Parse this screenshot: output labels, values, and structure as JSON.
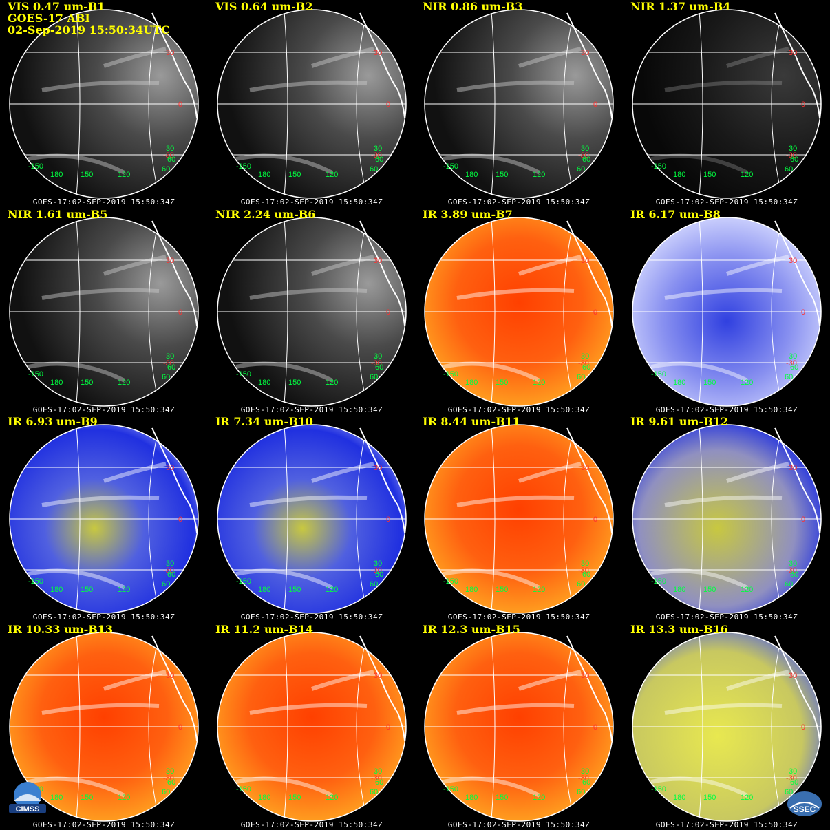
{
  "header": {
    "satellite": "GOES-17 ABI",
    "datetime": "02-Sep-2019 15:50:34UTC"
  },
  "footer_text": "GOES-17:02-SEP-2019 15:50:34Z",
  "lat_labels": [
    "30",
    "0",
    "-30"
  ],
  "lon_labels": [
    "-150",
    "180",
    "150",
    "120",
    "60"
  ],
  "lon_labels_extra": [
    "30",
    "60"
  ],
  "logos": {
    "left": "CIMSS",
    "right": "SSEC"
  },
  "panels": [
    {
      "label": "VIS 0.47 um-B1",
      "palette": "vis"
    },
    {
      "label": "VIS 0.64 um-B2",
      "palette": "vis"
    },
    {
      "label": "NIR 0.86 um-B3",
      "palette": "vis"
    },
    {
      "label": "NIR 1.37 um-B4",
      "palette": "dark"
    },
    {
      "label": "NIR 1.61 um-B5",
      "palette": "vis"
    },
    {
      "label": "NIR 2.24 um-B6",
      "palette": "vis"
    },
    {
      "label": "IR 3.89 um-B7",
      "palette": "ir"
    },
    {
      "label": "IR 6.17 um-B8",
      "palette": "wv8"
    },
    {
      "label": "IR 6.93 um-B9",
      "palette": "wv"
    },
    {
      "label": "IR 7.34 um-B10",
      "palette": "wv"
    },
    {
      "label": "IR 8.44 um-B11",
      "palette": "ir"
    },
    {
      "label": "IR 9.61 um-B12",
      "palette": "wv12"
    },
    {
      "label": "IR 10.33 um-B13",
      "palette": "ir"
    },
    {
      "label": "IR 11.2 um-B14",
      "palette": "ir"
    },
    {
      "label": "IR 12.3 um-B15",
      "palette": "ir"
    },
    {
      "label": "IR 13.3 um-B16",
      "palette": "wv16"
    }
  ],
  "colors": {
    "title": "#ffff00",
    "grid": "#ffffff",
    "lat_label": "#ff3030",
    "lon_label": "#00ff40"
  }
}
